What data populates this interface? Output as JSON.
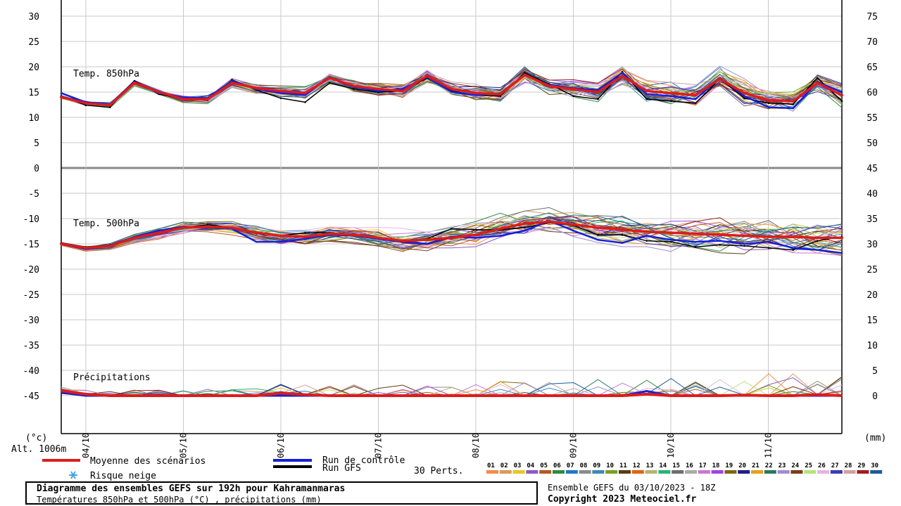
{
  "chart_data": {
    "type": "line",
    "title": "Diagramme des ensembles GEFS sur 192h pour Kahramanmaras",
    "subtitle": "Températures 850hPa et 500hPa (°C) , précipitations (mm)",
    "run_info": "Ensemble GEFS du 03/10/2023 - 18Z",
    "copyright": "Copyright 2023 Meteociel.fr",
    "altitude": "Alt. 1006m",
    "left_unit": "(°c)",
    "right_unit": "(mm)",
    "left_ticks": [
      "30",
      "25",
      "20",
      "15",
      "10",
      "5",
      "0",
      "-5",
      "-10",
      "-15",
      "-20",
      "-25",
      "-30",
      "-35",
      "-40",
      "-45"
    ],
    "right_ticks": [
      "75",
      "70",
      "65",
      "60",
      "55",
      "50",
      "45",
      "40",
      "35",
      "30",
      "25",
      "20",
      "15",
      "10",
      "5",
      "0"
    ],
    "ylim_temp": [
      -45,
      30
    ],
    "ylim_precip": [
      0,
      75
    ],
    "x_labels": [
      "04/10",
      "05/10",
      "06/10",
      "07/10",
      "08/10",
      "09/10",
      "10/10",
      "11/10"
    ],
    "panel_labels": {
      "t850": "Temp. 850hPa",
      "t500": "Temp. 500hPa",
      "precip": "Précipitations"
    },
    "grid": true,
    "x_steps": 33,
    "series": [
      {
        "name": "Moyenne des scénarios",
        "color": "#dd1c1c",
        "t850": [
          14,
          12.8,
          12.4,
          16.8,
          15,
          13.6,
          13.6,
          16.8,
          15.8,
          15.2,
          14.8,
          17.8,
          16.2,
          15.6,
          15.2,
          18.2,
          15.6,
          14.8,
          14.6,
          18.4,
          16.2,
          15.6,
          15,
          18.2,
          15.2,
          14.8,
          14.4,
          17.6,
          14.8,
          13.4,
          13.2,
          16.8,
          14.4
        ],
        "t500": [
          -15,
          -15.8,
          -15.4,
          -13.8,
          -12.8,
          -11.8,
          -11.6,
          -11.8,
          -12.8,
          -13.4,
          -13.6,
          -13,
          -13.2,
          -13.8,
          -14.4,
          -14.2,
          -13.8,
          -13.2,
          -12,
          -11,
          -10.6,
          -11.2,
          -11.8,
          -12.2,
          -12.6,
          -12.8,
          -13,
          -13.2,
          -13.4,
          -13.6,
          -13.6,
          -13.8,
          -13.8
        ],
        "precip": [
          1,
          0.3,
          0,
          0,
          0,
          0,
          0,
          0,
          0,
          0.5,
          0.2,
          0,
          0,
          0,
          0,
          0,
          0,
          0,
          0,
          0,
          0,
          0,
          0,
          0,
          0.3,
          0,
          0,
          0,
          0.1,
          0,
          0,
          0.2,
          0
        ]
      },
      {
        "name": "Run de contrôle",
        "color": "#1420d8",
        "t850": [
          14.8,
          13,
          12.6,
          17,
          14.8,
          14,
          13.8,
          17.2,
          15.6,
          14.8,
          14.4,
          18,
          16,
          15.2,
          15.6,
          18,
          15,
          14.4,
          14.8,
          18.4,
          16.4,
          15.8,
          15.4,
          18.8,
          14.6,
          14.2,
          13.6,
          17.8,
          14.2,
          12,
          11.8,
          17,
          15
        ],
        "t500": [
          -15,
          -16,
          -15.4,
          -13.6,
          -12.4,
          -11.6,
          -11.8,
          -12,
          -14.6,
          -14.6,
          -14,
          -13.2,
          -13.4,
          -14,
          -14.6,
          -15,
          -13.6,
          -13.8,
          -13.4,
          -12.4,
          -10.4,
          -12.4,
          -14.2,
          -14.8,
          -13.4,
          -14.2,
          -14.6,
          -14.4,
          -15,
          -14.6,
          -15.8,
          -16.2,
          -16.8
        ],
        "precip": [
          0.6,
          0,
          0,
          0,
          0,
          0,
          0,
          0,
          0,
          0,
          0,
          0,
          0,
          0,
          0,
          0,
          0,
          0,
          0,
          0,
          0,
          0,
          0,
          0,
          0.9,
          0,
          0,
          0,
          0,
          0,
          0,
          0,
          0
        ]
      },
      {
        "name": "Run GFS",
        "color": "#000000",
        "t850": [
          14.2,
          12.4,
          12,
          17.2,
          14.6,
          13.6,
          13.4,
          17.4,
          15.4,
          13.8,
          13,
          16.8,
          15.6,
          15,
          15.2,
          17.8,
          15.2,
          14.4,
          14.2,
          18.8,
          16.6,
          14.2,
          13.6,
          19,
          13.6,
          13.2,
          12.8,
          17.6,
          13.8,
          12.8,
          12.6,
          17.8,
          13.2
        ],
        "t500": [
          -14.8,
          -15.6,
          -15.2,
          -13.6,
          -12.6,
          -11.8,
          -11.2,
          -11.8,
          -13,
          -13.4,
          -12.8,
          -12.8,
          -13.2,
          -14,
          -14.4,
          -14,
          -12,
          -12.2,
          -12.2,
          -11.8,
          -10.8,
          -11.4,
          -13.2,
          -13.2,
          -14.4,
          -14.6,
          -15.6,
          -15.2,
          -15.4,
          -15.8,
          -16.2,
          -14.4,
          -13.6
        ],
        "precip": [
          0.5,
          0,
          0,
          0,
          0,
          0,
          0,
          0,
          0,
          0,
          0,
          0,
          0,
          0,
          0,
          0,
          0,
          0,
          0,
          0,
          0,
          0,
          0,
          0,
          0.4,
          0,
          0,
          0,
          0,
          0,
          0,
          0,
          0
        ]
      }
    ]
  },
  "legend": {
    "mean": "Moyenne des scénarios",
    "control": "Run de contrôle",
    "gfs": "Run GFS",
    "snow": "Risque neige",
    "perts": "30 Perts.",
    "pert_labels": [
      "01",
      "02",
      "03",
      "04",
      "05",
      "06",
      "07",
      "08",
      "09",
      "10",
      "11",
      "12",
      "13",
      "14",
      "15",
      "16",
      "17",
      "18",
      "19",
      "20",
      "21",
      "22",
      "23",
      "24",
      "25",
      "26",
      "27",
      "28",
      "29",
      "30"
    ],
    "pert_colors": [
      "#f58c46",
      "#d79b5a",
      "#e6c820",
      "#8c5ac8",
      "#b45a1e",
      "#2e8c3c",
      "#1e78c8",
      "#8c8c8c",
      "#3c8cb4",
      "#7a9e2a",
      "#5a3c14",
      "#e06414",
      "#b4b46e",
      "#28b478",
      "#6e6e6e",
      "#aaaaaa",
      "#c878d2",
      "#a046dc",
      "#826414",
      "#1e1e8c",
      "#e6a01e",
      "#287864",
      "#a08cd2",
      "#7c3c1e",
      "#b4e678",
      "#e6b4e6",
      "#3c3cb4",
      "#d2a0a0",
      "#a01e1e",
      "#1e5a9e"
    ]
  }
}
